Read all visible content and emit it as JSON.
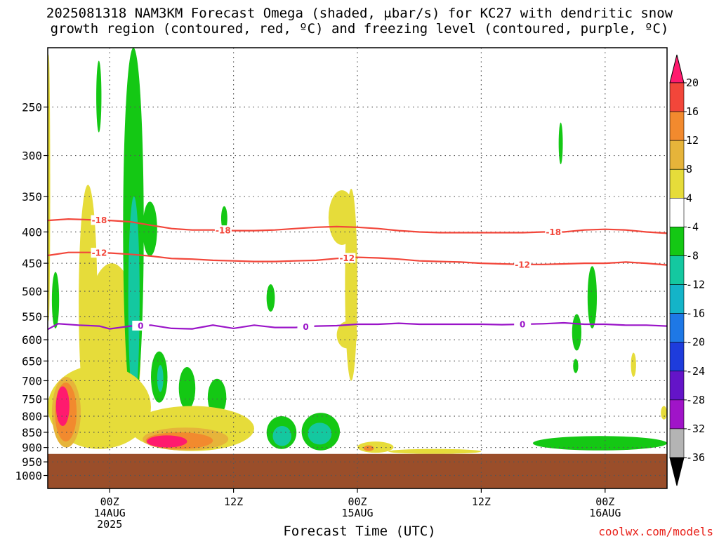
{
  "title_line1": "2025081318 NAM3KM Forecast Omega (shaded, μbar/s) for KC27 with dendritic snow",
  "title_line2": "growth region (contoured, red, ºC) and freezing level (contoured, purple, ºC)",
  "credit": "coolwx.com/models",
  "chart_data": {
    "type": "heatmap",
    "title": "2025081318 NAM3KM Forecast Omega (shaded, μbar/s) for KC27 with dendritic snow growth region (contoured, red, ºC) and freezing level (contoured, purple, ºC)",
    "xlabel": "Forecast Time (UTC)",
    "ylabel": "",
    "x_range_hours": [
      -6,
      54
    ],
    "y_range_mb": [
      200,
      1050
    ],
    "y_scale": "log",
    "grid": true,
    "y_ticks": [
      250,
      300,
      350,
      400,
      450,
      500,
      550,
      600,
      650,
      700,
      750,
      800,
      850,
      900,
      950,
      1000
    ],
    "x_ticks": [
      {
        "hour": 0,
        "line1": "00Z",
        "line2": "14AUG",
        "line3": "2025"
      },
      {
        "hour": 12,
        "line1": "12Z",
        "line2": "",
        "line3": ""
      },
      {
        "hour": 24,
        "line1": "00Z",
        "line2": "15AUG",
        "line3": ""
      },
      {
        "hour": 36,
        "line1": "12Z",
        "line2": "",
        "line3": ""
      },
      {
        "hour": 48,
        "line1": "00Z",
        "line2": "16AUG",
        "line3": ""
      }
    ],
    "colorbar": {
      "labels": [
        "20",
        "16",
        "12",
        "8",
        "4",
        "-4",
        "-8",
        "-12",
        "-16",
        "-20",
        "-24",
        "-28",
        "-32",
        "-36"
      ],
      "colors": [
        "#ff1a6e",
        "#f2463a",
        "#f28a2e",
        "#e6b43a",
        "#e6dc3a",
        "#ffffff",
        "#14c814",
        "#14c8a0",
        "#14b4c8",
        "#1e78e6",
        "#1e3cdc",
        "#6414c8",
        "#a014c8",
        "#b4b4b4",
        "#000000"
      ]
    },
    "contour_series": [
      {
        "name": "-18",
        "color": "#f2463a",
        "label_hours": [
          -1,
          11,
          43
        ],
        "points": [
          [
            -6,
            383
          ],
          [
            -4,
            381
          ],
          [
            -2,
            382
          ],
          [
            0,
            383
          ],
          [
            2,
            385
          ],
          [
            4,
            390
          ],
          [
            6,
            395
          ],
          [
            8,
            397
          ],
          [
            10,
            397
          ],
          [
            12,
            398
          ],
          [
            14,
            398
          ],
          [
            16,
            397
          ],
          [
            18,
            395
          ],
          [
            20,
            393
          ],
          [
            22,
            392
          ],
          [
            24,
            393
          ],
          [
            26,
            395
          ],
          [
            28,
            398
          ],
          [
            30,
            400
          ],
          [
            32,
            401
          ],
          [
            34,
            401
          ],
          [
            36,
            401
          ],
          [
            38,
            401
          ],
          [
            40,
            401
          ],
          [
            42,
            400
          ],
          [
            44,
            400
          ],
          [
            46,
            397
          ],
          [
            48,
            396
          ],
          [
            50,
            397
          ],
          [
            52,
            400
          ],
          [
            54,
            402
          ]
        ]
      },
      {
        "name": "-12",
        "color": "#f2463a",
        "label_hours": [
          -1,
          23,
          40
        ],
        "points": [
          [
            -6,
            437
          ],
          [
            -4,
            432
          ],
          [
            -2,
            432
          ],
          [
            0,
            433
          ],
          [
            2,
            435
          ],
          [
            4,
            438
          ],
          [
            6,
            442
          ],
          [
            8,
            443
          ],
          [
            10,
            445
          ],
          [
            12,
            446
          ],
          [
            14,
            447
          ],
          [
            16,
            447
          ],
          [
            18,
            446
          ],
          [
            20,
            445
          ],
          [
            22,
            442
          ],
          [
            24,
            440
          ],
          [
            26,
            441
          ],
          [
            28,
            443
          ],
          [
            30,
            446
          ],
          [
            32,
            447
          ],
          [
            34,
            448
          ],
          [
            36,
            450
          ],
          [
            38,
            451
          ],
          [
            40,
            452
          ],
          [
            42,
            452
          ],
          [
            44,
            451
          ],
          [
            46,
            450
          ],
          [
            48,
            450
          ],
          [
            50,
            448
          ],
          [
            52,
            450
          ],
          [
            54,
            453
          ]
        ]
      },
      {
        "name": "0",
        "color": "#9a14c8",
        "label_hours": [
          3,
          19,
          40
        ],
        "points": [
          [
            -6,
            577
          ],
          [
            -5,
            565
          ],
          [
            -3,
            568
          ],
          [
            -1,
            570
          ],
          [
            0,
            576
          ],
          [
            2,
            570
          ],
          [
            4,
            568
          ],
          [
            6,
            575
          ],
          [
            8,
            576
          ],
          [
            10,
            568
          ],
          [
            12,
            575
          ],
          [
            14,
            568
          ],
          [
            16,
            573
          ],
          [
            18,
            573
          ],
          [
            20,
            570
          ],
          [
            22,
            569
          ],
          [
            24,
            566
          ],
          [
            26,
            566
          ],
          [
            28,
            564
          ],
          [
            30,
            566
          ],
          [
            32,
            566
          ],
          [
            34,
            566
          ],
          [
            36,
            566
          ],
          [
            38,
            567
          ],
          [
            40,
            566
          ],
          [
            42,
            565
          ],
          [
            44,
            563
          ],
          [
            46,
            566
          ],
          [
            48,
            566
          ],
          [
            50,
            568
          ],
          [
            52,
            568
          ],
          [
            54,
            570
          ]
        ]
      }
    ],
    "omega_regions": [
      {
        "value": 4,
        "t0": -6,
        "t1": -5.8,
        "p0": 205,
        "p1": 560
      },
      {
        "value": 4,
        "t0": -3,
        "t1": -1.2,
        "p0": 335,
        "p1": 810
      },
      {
        "value": 4,
        "t0": -2.6,
        "t1": 3,
        "p0": 450,
        "p1": 895
      },
      {
        "value": -8,
        "t0": -5.6,
        "t1": -4.9,
        "p0": 465,
        "p1": 575
      },
      {
        "value": -8,
        "t0": -1.3,
        "t1": -0.8,
        "p0": 210,
        "p1": 275
      },
      {
        "value": -8,
        "t0": 1.3,
        "t1": 3.3,
        "p0": 200,
        "p1": 780
      },
      {
        "value": -12,
        "t0": 1.8,
        "t1": 2.9,
        "p0": 350,
        "p1": 760
      },
      {
        "value": -8,
        "t0": 3.2,
        "t1": 4.6,
        "p0": 357,
        "p1": 438
      },
      {
        "value": -8,
        "t0": 4,
        "t1": 5.6,
        "p0": 627,
        "p1": 760
      },
      {
        "value": -12,
        "t0": 4.6,
        "t1": 5.2,
        "p0": 660,
        "p1": 730
      },
      {
        "value": -8,
        "t0": 6.7,
        "t1": 8.3,
        "p0": 665,
        "p1": 780
      },
      {
        "value": -8,
        "t0": 9.5,
        "t1": 11.3,
        "p0": 695,
        "p1": 800
      },
      {
        "value": -8,
        "t0": 10.8,
        "t1": 11.4,
        "p0": 363,
        "p1": 398
      },
      {
        "value": -8,
        "t0": 15.2,
        "t1": 16,
        "p0": 487,
        "p1": 540
      },
      {
        "value": 4,
        "t0": 21.2,
        "t1": 23.8,
        "p0": 342,
        "p1": 420
      },
      {
        "value": 4,
        "t0": 22.8,
        "t1": 24,
        "p0": 340,
        "p1": 700
      },
      {
        "value": 4,
        "t0": 22,
        "t1": 24,
        "p0": 560,
        "p1": 620
      },
      {
        "value": -8,
        "t0": 15.2,
        "t1": 18.1,
        "p0": 800,
        "p1": 905
      },
      {
        "value": -12,
        "t0": 15.8,
        "t1": 17.6,
        "p0": 830,
        "p1": 895
      },
      {
        "value": -8,
        "t0": 18.6,
        "t1": 22.3,
        "p0": 790,
        "p1": 910
      },
      {
        "value": -12,
        "t0": 19.2,
        "t1": 21.5,
        "p0": 820,
        "p1": 890
      },
      {
        "value": -8,
        "t0": 46.3,
        "t1": 47.2,
        "p0": 455,
        "p1": 575
      },
      {
        "value": -8,
        "t0": 44.8,
        "t1": 45.7,
        "p0": 545,
        "p1": 625
      },
      {
        "value": -8,
        "t0": 44.9,
        "t1": 45.4,
        "p0": 645,
        "p1": 680
      },
      {
        "value": -8,
        "t0": 43.5,
        "t1": 43.9,
        "p0": 265,
        "p1": 310
      },
      {
        "value": 4,
        "t0": 50.5,
        "t1": 51,
        "p0": 630,
        "p1": 690
      },
      {
        "value": 4,
        "t0": 53.4,
        "t1": 54,
        "p0": 770,
        "p1": 810
      },
      {
        "value": -8,
        "t0": 41,
        "t1": 54,
        "p0": 862,
        "p1": 910
      },
      {
        "value": 4,
        "t0": -6,
        "t1": 4,
        "p0": 660,
        "p1": 905
      },
      {
        "value": 8,
        "t0": -5.6,
        "t1": -2.8,
        "p0": 690,
        "p1": 900
      },
      {
        "value": 12,
        "t0": -5.3,
        "t1": -3.2,
        "p0": 705,
        "p1": 880
      },
      {
        "value": 20,
        "t0": -5.2,
        "t1": -3.9,
        "p0": 715,
        "p1": 830
      },
      {
        "value": 4,
        "t0": 2,
        "t1": 14,
        "p0": 770,
        "p1": 912
      },
      {
        "value": 8,
        "t0": 3.2,
        "t1": 11.5,
        "p0": 835,
        "p1": 910
      },
      {
        "value": 12,
        "t0": 3.5,
        "t1": 10,
        "p0": 850,
        "p1": 905
      },
      {
        "value": 20,
        "t0": 3.6,
        "t1": 7.5,
        "p0": 860,
        "p1": 900
      },
      {
        "value": 4,
        "t0": 24,
        "t1": 27.5,
        "p0": 880,
        "p1": 918
      },
      {
        "value": 12,
        "t0": 24.6,
        "t1": 25.6,
        "p0": 893,
        "p1": 912
      },
      {
        "value": 4,
        "t0": 27,
        "t1": 36,
        "p0": 905,
        "p1": 922
      }
    ]
  }
}
